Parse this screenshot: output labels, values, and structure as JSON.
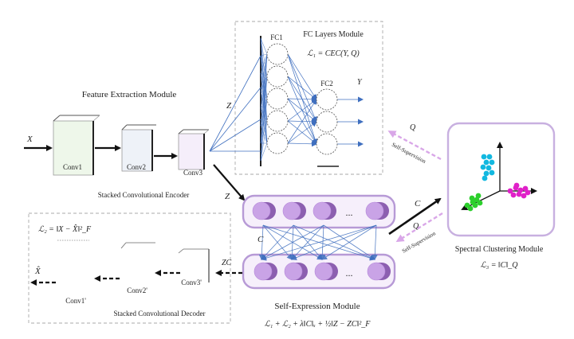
{
  "modules": {
    "feature_extraction": "Feature Extraction Module",
    "fc_layers": "FC Layers Module",
    "self_expression": "Self-Expression Module",
    "spectral_clustering": "Spectral Clustering Module"
  },
  "captions": {
    "encoder": "Stacked Convolutional Encoder",
    "decoder": "Stacked Convolutional Decoder"
  },
  "layers": {
    "conv1": "Conv1",
    "conv2": "Conv2",
    "conv3": "Conv3",
    "conv3p": "Conv3'",
    "conv2p": "Conv2'",
    "conv1p": "Conv1'",
    "fc1": "FC1",
    "fc2": "FC2"
  },
  "variables": {
    "x_in": "X",
    "x_hat": "X̂",
    "z_fc": "Z",
    "z_se": "Z",
    "zc": "ZC",
    "y": "Y",
    "c_top": "C",
    "c_mid": "C",
    "q_top": "Q",
    "q_bottom": "Q",
    "dots_top": "...",
    "dots_bottom": "..."
  },
  "edges": {
    "self_supervision_top": "Self-Supervision",
    "self_supervision_bottom": "Self-Supervision"
  },
  "equations": {
    "l1": "ℒ₁ = CEC(Y, Q)",
    "l2": "ℒ₂ = ‖X − X̂‖²_F",
    "l3": "ℒ₃ = ‖C‖_Q",
    "total": "ℒ₁ + ℒ₂ + λ‖C‖ₓ + ½‖Z − ZC‖²_F"
  },
  "colors": {
    "node_fill": "#c9a3e6",
    "node_back": "#8c5fb0",
    "module_border": "#b79ad6",
    "module_fill": "#f6effb",
    "fc_edge": "#3f6fbf",
    "dashed_arrow": "#d9a7e8",
    "cluster_cyan": "#12b8e0",
    "cluster_magenta": "#e021c8",
    "cluster_green": "#2ccf2c"
  }
}
